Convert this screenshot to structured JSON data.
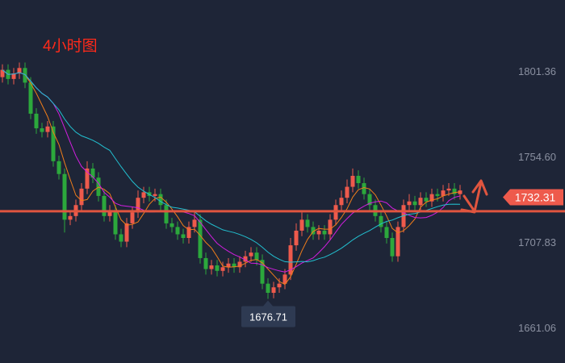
{
  "chart_data": {
    "type": "candlestick",
    "title": "4小时图",
    "ylim": [
      1641.6,
      1840.2
    ],
    "y_ticks": [
      "1801.36",
      "1754.60",
      "1707.83",
      "1661.06"
    ],
    "y_tick_values": [
      1801.36,
      1754.6,
      1707.83,
      1661.06
    ],
    "grid": false,
    "current_price_label": "1732.31",
    "current_price": 1732.31,
    "low_marker_label": "1676.71",
    "low_marker_value": 1676.71,
    "horizontal_line": 1724.6,
    "moving_averages": [
      {
        "period": 5,
        "color": "#f07d1a"
      },
      {
        "period": 10,
        "color": "#d21ee0"
      },
      {
        "period": 20,
        "color": "#22c0d0"
      }
    ],
    "colors": {
      "up": "#ee5a4c",
      "down": "#2ca83c",
      "line": "#e0553f",
      "background": "#1e2537",
      "axis_text": "#8a90a0"
    },
    "open": [
      1798,
      1802,
      1797,
      1800,
      1803,
      1795,
      1778,
      1770,
      1768,
      1771,
      1752,
      1745,
      1720,
      1722,
      1728,
      1737,
      1748,
      1743,
      1733,
      1722,
      1725,
      1712,
      1708,
      1718,
      1724,
      1732,
      1735,
      1733,
      1734,
      1728,
      1718,
      1716,
      1712,
      1710,
      1716,
      1720,
      1699,
      1693,
      1695,
      1692,
      1694,
      1696,
      1694,
      1697,
      1700,
      1702,
      1698,
      1685,
      1680,
      1683,
      1685,
      1690,
      1706,
      1714,
      1720,
      1716,
      1712,
      1714,
      1712,
      1720,
      1728,
      1732,
      1738,
      1744,
      1740,
      1734,
      1728,
      1722,
      1716,
      1710,
      1700,
      1716,
      1728,
      1730,
      1728,
      1732,
      1730,
      1734,
      1733,
      1736,
      1737,
      1734
    ],
    "high": [
      1805,
      1805,
      1803,
      1806,
      1806,
      1798,
      1781,
      1773,
      1774,
      1774,
      1755,
      1748,
      1725,
      1731,
      1740,
      1752,
      1751,
      1746,
      1736,
      1728,
      1728,
      1715,
      1721,
      1727,
      1736,
      1738,
      1738,
      1737,
      1737,
      1731,
      1721,
      1719,
      1715,
      1719,
      1724,
      1723,
      1702,
      1698,
      1698,
      1697,
      1699,
      1699,
      1700,
      1703,
      1705,
      1705,
      1701,
      1688,
      1686,
      1688,
      1693,
      1710,
      1718,
      1724,
      1723,
      1719,
      1717,
      1717,
      1723,
      1731,
      1736,
      1742,
      1748,
      1747,
      1743,
      1737,
      1731,
      1725,
      1719,
      1713,
      1719,
      1731,
      1734,
      1733,
      1735,
      1735,
      1737,
      1737,
      1739,
      1740,
      1740,
      1739
    ],
    "low": [
      1795,
      1794,
      1794,
      1797,
      1792,
      1775,
      1767,
      1765,
      1765,
      1749,
      1742,
      1713,
      1717,
      1719,
      1725,
      1734,
      1740,
      1730,
      1719,
      1719,
      1709,
      1705,
      1705,
      1715,
      1721,
      1729,
      1730,
      1730,
      1725,
      1715,
      1713,
      1709,
      1707,
      1707,
      1713,
      1696,
      1690,
      1690,
      1689,
      1689,
      1691,
      1691,
      1691,
      1694,
      1697,
      1695,
      1682,
      1676.71,
      1677,
      1680,
      1682,
      1687,
      1703,
      1711,
      1713,
      1709,
      1709,
      1709,
      1709,
      1717,
      1725,
      1729,
      1735,
      1737,
      1731,
      1725,
      1719,
      1713,
      1707,
      1697,
      1697,
      1713,
      1725,
      1725,
      1725,
      1727,
      1727,
      1730,
      1730,
      1733,
      1731,
      1731
    ],
    "close": [
      1802,
      1797,
      1800,
      1803,
      1795,
      1778,
      1770,
      1768,
      1771,
      1752,
      1745,
      1720,
      1722,
      1728,
      1737,
      1748,
      1743,
      1733,
      1722,
      1725,
      1712,
      1708,
      1718,
      1724,
      1732,
      1735,
      1733,
      1734,
      1728,
      1718,
      1716,
      1712,
      1710,
      1716,
      1720,
      1699,
      1693,
      1695,
      1692,
      1694,
      1696,
      1694,
      1697,
      1700,
      1702,
      1698,
      1685,
      1680,
      1683,
      1685,
      1690,
      1706,
      1714,
      1720,
      1716,
      1712,
      1714,
      1712,
      1720,
      1728,
      1732,
      1738,
      1744,
      1740,
      1734,
      1728,
      1722,
      1716,
      1710,
      1700,
      1716,
      1728,
      1730,
      1728,
      1732,
      1730,
      1734,
      1733,
      1736,
      1737,
      1734,
      1736
    ]
  }
}
